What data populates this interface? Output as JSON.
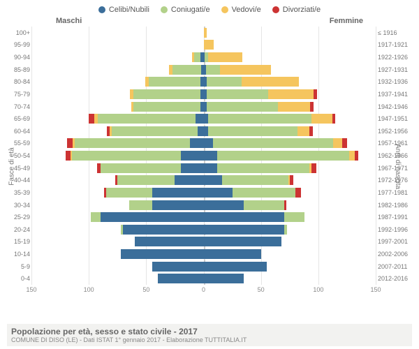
{
  "legend": [
    {
      "label": "Celibi/Nubili",
      "color": "#3b6e9a"
    },
    {
      "label": "Coniugati/e",
      "color": "#b2d18a"
    },
    {
      "label": "Vedovi/e",
      "color": "#f5c55e"
    },
    {
      "label": "Divorziati/e",
      "color": "#cc3333"
    }
  ],
  "headers": {
    "male": "Maschi",
    "female": "Femmine"
  },
  "axis": {
    "left_label": "Fasce di età",
    "right_label": "Anni di nascita"
  },
  "xaxis": {
    "max": 150,
    "ticks": [
      150,
      100,
      50,
      0,
      50,
      100,
      150
    ]
  },
  "colors": {
    "single": "#3b6e9a",
    "married": "#b2d18a",
    "widowed": "#f5c55e",
    "divorced": "#cc3333",
    "grid": "#e5e5e5",
    "background": "#ffffff"
  },
  "rows": [
    {
      "age": "100+",
      "birth": "≤ 1916",
      "m": [
        0,
        0,
        0,
        0
      ],
      "f": [
        0,
        0,
        3,
        0
      ]
    },
    {
      "age": "95-99",
      "birth": "1917-1921",
      "m": [
        0,
        0,
        0,
        0
      ],
      "f": [
        0,
        0,
        9,
        0
      ]
    },
    {
      "age": "90-94",
      "birth": "1922-1926",
      "m": [
        3,
        5,
        2,
        0
      ],
      "f": [
        1,
        3,
        30,
        0
      ]
    },
    {
      "age": "85-89",
      "birth": "1927-1931",
      "m": [
        2,
        25,
        3,
        0
      ],
      "f": [
        2,
        12,
        45,
        0
      ]
    },
    {
      "age": "80-84",
      "birth": "1932-1936",
      "m": [
        3,
        45,
        3,
        0
      ],
      "f": [
        3,
        30,
        50,
        0
      ]
    },
    {
      "age": "75-79",
      "birth": "1937-1941",
      "m": [
        3,
        58,
        3,
        0
      ],
      "f": [
        3,
        53,
        40,
        3
      ]
    },
    {
      "age": "70-74",
      "birth": "1942-1946",
      "m": [
        3,
        58,
        2,
        0
      ],
      "f": [
        3,
        62,
        28,
        3
      ]
    },
    {
      "age": "65-69",
      "birth": "1947-1951",
      "m": [
        7,
        85,
        3,
        5
      ],
      "f": [
        4,
        90,
        18,
        3
      ]
    },
    {
      "age": "60-64",
      "birth": "1952-1956",
      "m": [
        5,
        75,
        2,
        2
      ],
      "f": [
        4,
        78,
        10,
        3
      ]
    },
    {
      "age": "55-59",
      "birth": "1957-1961",
      "m": [
        12,
        100,
        2,
        5
      ],
      "f": [
        8,
        105,
        8,
        4
      ]
    },
    {
      "age": "50-54",
      "birth": "1962-1966",
      "m": [
        20,
        95,
        1,
        4
      ],
      "f": [
        12,
        115,
        5,
        3
      ]
    },
    {
      "age": "45-49",
      "birth": "1967-1971",
      "m": [
        20,
        70,
        0,
        3
      ],
      "f": [
        12,
        80,
        2,
        4
      ]
    },
    {
      "age": "40-44",
      "birth": "1972-1976",
      "m": [
        25,
        50,
        0,
        2
      ],
      "f": [
        16,
        58,
        1,
        3
      ]
    },
    {
      "age": "35-39",
      "birth": "1977-1981",
      "m": [
        45,
        40,
        0,
        2
      ],
      "f": [
        25,
        55,
        0,
        5
      ]
    },
    {
      "age": "30-34",
      "birth": "1982-1986",
      "m": [
        45,
        20,
        0,
        0
      ],
      "f": [
        35,
        35,
        0,
        2
      ]
    },
    {
      "age": "25-29",
      "birth": "1987-1991",
      "m": [
        90,
        8,
        0,
        0
      ],
      "f": [
        70,
        18,
        0,
        0
      ]
    },
    {
      "age": "20-24",
      "birth": "1992-1996",
      "m": [
        70,
        2,
        0,
        0
      ],
      "f": [
        70,
        3,
        0,
        0
      ]
    },
    {
      "age": "15-19",
      "birth": "1997-2001",
      "m": [
        60,
        0,
        0,
        0
      ],
      "f": [
        68,
        0,
        0,
        0
      ]
    },
    {
      "age": "10-14",
      "birth": "2002-2006",
      "m": [
        72,
        0,
        0,
        0
      ],
      "f": [
        50,
        0,
        0,
        0
      ]
    },
    {
      "age": "5-9",
      "birth": "2007-2011",
      "m": [
        45,
        0,
        0,
        0
      ],
      "f": [
        55,
        0,
        0,
        0
      ]
    },
    {
      "age": "0-4",
      "birth": "2012-2016",
      "m": [
        40,
        0,
        0,
        0
      ],
      "f": [
        35,
        0,
        0,
        0
      ]
    }
  ],
  "footer": {
    "title": "Popolazione per età, sesso e stato civile - 2017",
    "subtitle": "COMUNE DI DISO (LE) - Dati ISTAT 1° gennaio 2017 - Elaborazione TUTTITALIA.IT"
  }
}
